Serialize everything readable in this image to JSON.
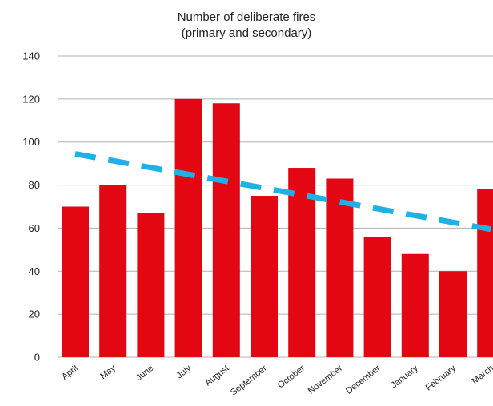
{
  "chart_data": {
    "type": "bar",
    "title": "Number of deliberate fires",
    "subtitle": "(primary and secondary)",
    "xlabel": "",
    "ylabel": "",
    "categories": [
      "April",
      "May",
      "June",
      "July",
      "August",
      "September",
      "October",
      "November",
      "December",
      "January",
      "February",
      "March"
    ],
    "series": [
      {
        "type": "bar",
        "values": [
          70,
          80,
          67,
          120,
          118,
          75,
          88,
          83,
          56,
          48,
          40,
          78
        ],
        "color": "#e30613"
      }
    ],
    "trendline": {
      "style": "dashed",
      "color": "#1fb1e6",
      "start": 94.5,
      "end": 59.5
    },
    "ylim": [
      0,
      140
    ],
    "yticks": [
      0,
      20,
      40,
      60,
      80,
      100,
      120,
      140
    ],
    "grid": true,
    "legend": "none"
  }
}
